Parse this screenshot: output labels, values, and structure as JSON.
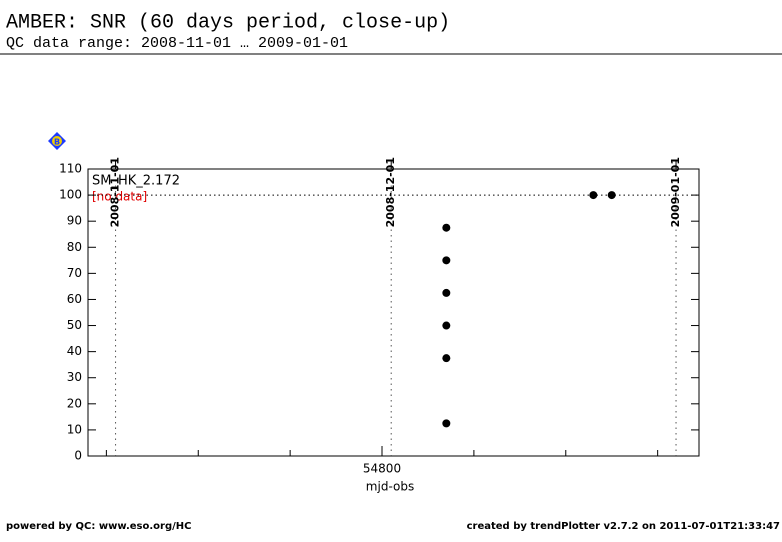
{
  "chart_data": {
    "type": "scatter",
    "title": "AMBER: SNR (60 days period, close-up)",
    "subtitle": "QC data range: 2008-11-01 … 2009-01-01",
    "xlabel": "mjd-obs",
    "x": [
      54807,
      54807,
      54807,
      54807,
      54807,
      54807,
      54823,
      54825
    ],
    "values": [
      87.5,
      75,
      62.5,
      50,
      37.5,
      12.5,
      100,
      100
    ],
    "color": "#000000",
    "xlim": [
      54768,
      54834.5
    ],
    "ylim": [
      0,
      110
    ],
    "yticks": [
      0,
      10,
      20,
      30,
      40,
      50,
      60,
      70,
      80,
      90,
      100,
      110
    ],
    "xticks": [
      54800
    ],
    "xminorticks": [
      54770,
      54780,
      54790,
      54800,
      54810,
      54820,
      54830
    ],
    "reference_line": 100,
    "date_lines": [
      {
        "value": 54771,
        "label": "2008-11-01"
      },
      {
        "value": 54801,
        "label": "2008-12-01"
      },
      {
        "value": 54832,
        "label": "2009-01-01"
      }
    ],
    "icon_label": "B",
    "annotations": [
      "SM_HK_2.172",
      "[no data]"
    ],
    "footer_left": "powered by QC: www.eso.org/HC",
    "footer_right": "created by trendPlotter v2.7.2 on 2011-07-01T21:33:47"
  }
}
